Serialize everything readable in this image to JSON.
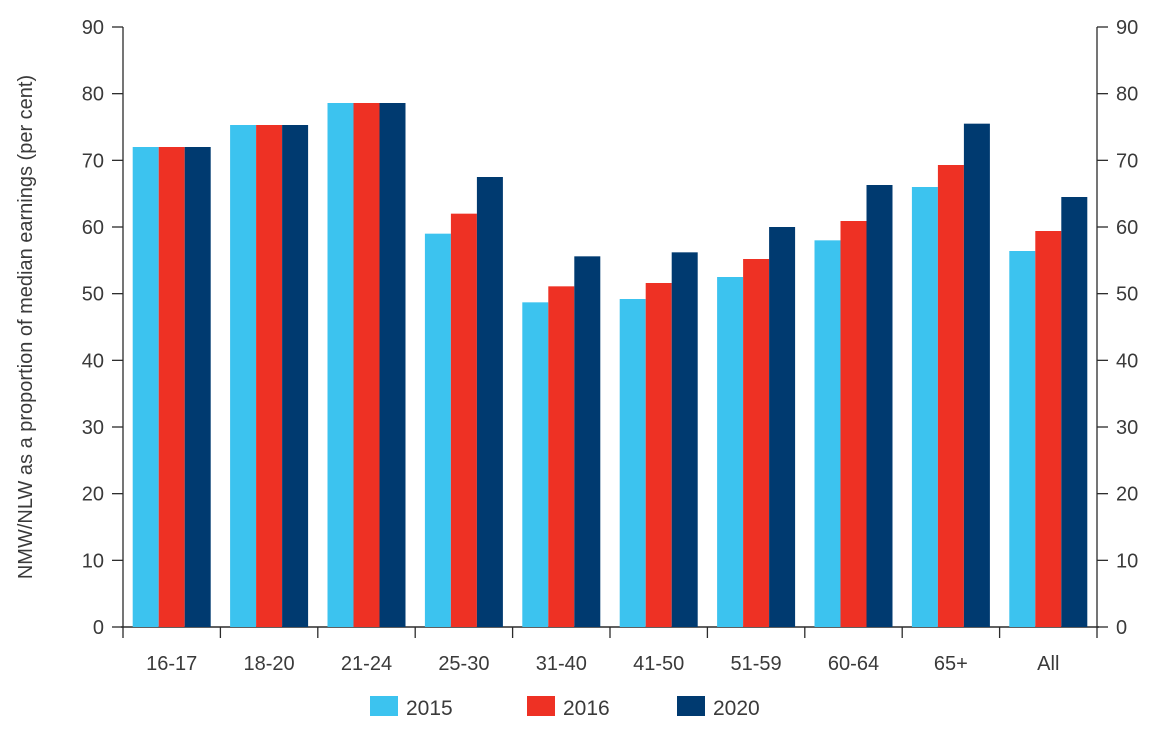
{
  "chart_data": {
    "type": "bar",
    "title": "",
    "xlabel": "",
    "ylabel": "NMW/NLW as a proportion of median earnings (per cent)",
    "ylim": [
      0,
      90
    ],
    "yticks": [
      0,
      10,
      20,
      30,
      40,
      50,
      60,
      70,
      80,
      90
    ],
    "right_axis_mirrored": true,
    "grid": false,
    "legend_position": "bottom",
    "categories": [
      "16-17",
      "18-20",
      "21-24",
      "25-30",
      "31-40",
      "41-50",
      "51-59",
      "60-64",
      "65+",
      "All"
    ],
    "series": [
      {
        "name": "2015",
        "color": "#3cc3ef",
        "values": [
          72.0,
          75.3,
          78.6,
          59.0,
          48.7,
          49.2,
          52.5,
          58.0,
          66.0,
          56.4
        ]
      },
      {
        "name": "2016",
        "color": "#ee3124",
        "values": [
          72.0,
          75.3,
          78.6,
          62.0,
          51.1,
          51.6,
          55.2,
          60.9,
          69.3,
          59.4
        ]
      },
      {
        "name": "2020",
        "color": "#003a70",
        "values": [
          72.0,
          75.3,
          78.6,
          67.5,
          55.6,
          56.2,
          60.0,
          66.3,
          75.5,
          64.5
        ]
      }
    ]
  }
}
